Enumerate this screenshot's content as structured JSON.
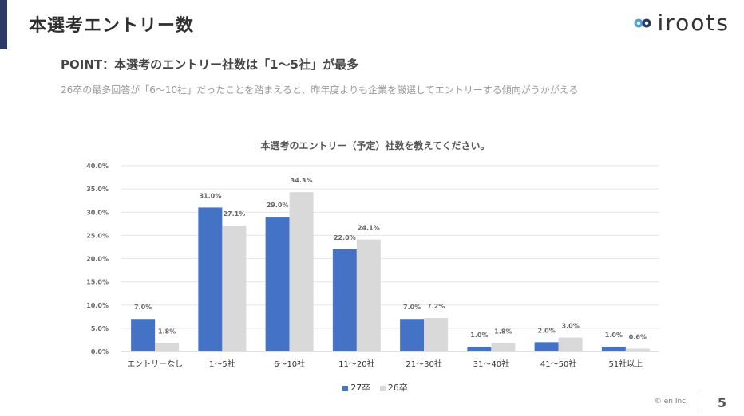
{
  "header": {
    "title": "本選考エントリー数",
    "logo_text": "iroots"
  },
  "point": "POINT：本選考のエントリー社数は「1〜5社」が最多",
  "description": "26卒の最多回答が「6〜10社」だったことを踏まえると、昨年度よりも企業を厳選してエントリーする傾向がうかがえる",
  "colors": {
    "series27": "#4472c4",
    "series26": "#d9d9d9",
    "accent": "#2b3a67"
  },
  "chart_data": {
    "type": "bar",
    "title": "本選考のエントリー（予定）社数を教えてください。",
    "categories": [
      "エントリーなし",
      "1〜5社",
      "6〜10社",
      "11〜20社",
      "21〜30社",
      "31〜40社",
      "41〜50社",
      "51社以上"
    ],
    "series": [
      {
        "name": "27卒",
        "values": [
          7.0,
          31.0,
          29.0,
          22.0,
          7.0,
          1.0,
          2.0,
          1.0
        ],
        "labels": [
          "7.0%",
          "31.0%",
          "29.0%",
          "22.0%",
          "7.0%",
          "1.0%",
          "2.0%",
          "1.0%"
        ]
      },
      {
        "name": "26卒",
        "values": [
          1.8,
          27.1,
          34.3,
          24.1,
          7.2,
          1.8,
          3.0,
          0.6
        ],
        "labels": [
          "1.8%",
          "27.1%",
          "34.3%",
          "24.1%",
          "7.2%",
          "1.8%",
          "3.0%",
          "0.6%"
        ]
      }
    ],
    "ylim": [
      0,
      40
    ],
    "yticks": [
      "0.0%",
      "5.0%",
      "10.0%",
      "15.0%",
      "20.0%",
      "25.0%",
      "30.0%",
      "35.0%",
      "40.0%"
    ],
    "grid": true,
    "legend": "bottom"
  },
  "footer": {
    "copyright": "© en Inc.",
    "page_number": "5"
  }
}
